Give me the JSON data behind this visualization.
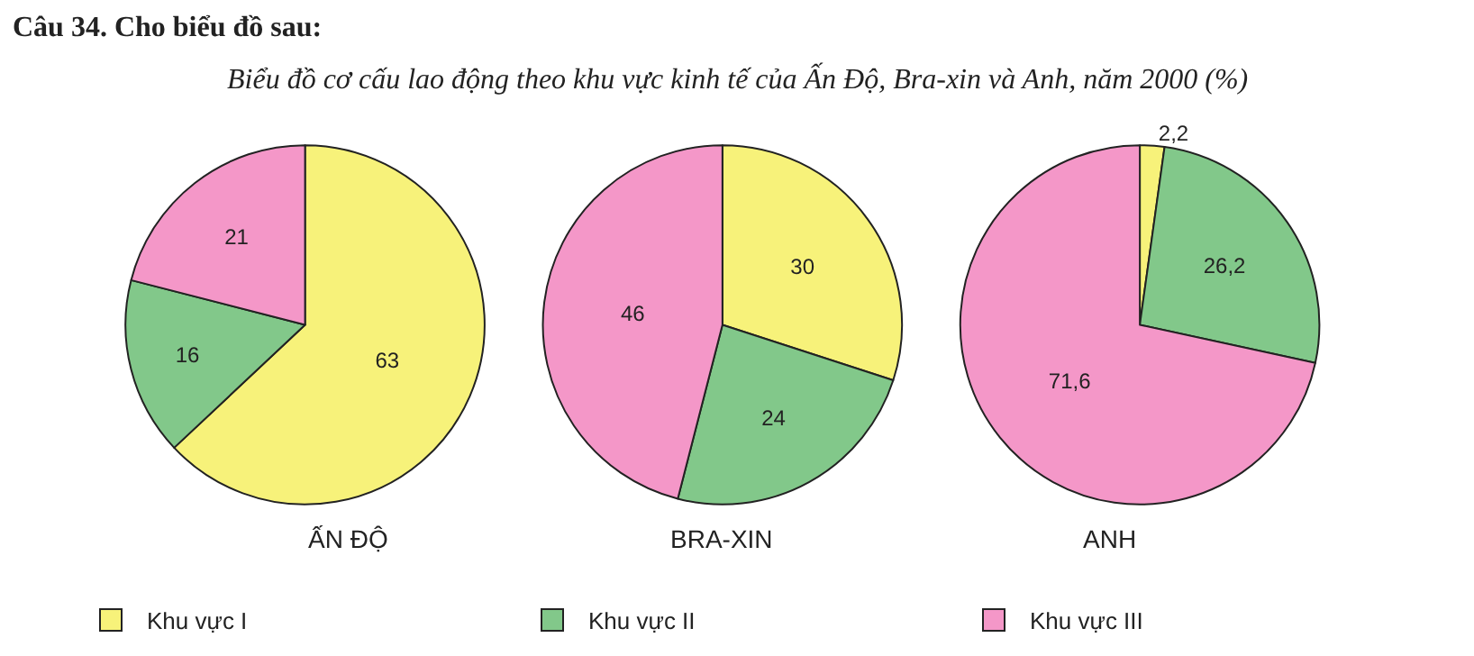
{
  "chart_data": {
    "type": "pie",
    "title": "Câu 34. Cho biểu đồ sau:",
    "subtitle": "Biểu đồ cơ cấu lao động theo khu vực kinh tế của Ấn Độ, Bra-xin và Anh, năm 2000 (%)",
    "categories": [
      "Khu vực I",
      "Khu vực II",
      "Khu vực III"
    ],
    "colors": [
      "#f7f27a",
      "#82c88a",
      "#f497c8"
    ],
    "legend": "bottom",
    "series": [
      {
        "name": "ẤN ĐỘ",
        "values": [
          63,
          16,
          21
        ],
        "value_labels": [
          "63",
          "16",
          "21"
        ]
      },
      {
        "name": "BRA-XIN",
        "values": [
          30,
          24,
          46
        ],
        "value_labels": [
          "30",
          "24",
          "46"
        ]
      },
      {
        "name": "ANH",
        "values": [
          2.2,
          26.2,
          71.6
        ],
        "value_labels": [
          "2,2",
          "26,2",
          "71,6"
        ]
      }
    ]
  }
}
